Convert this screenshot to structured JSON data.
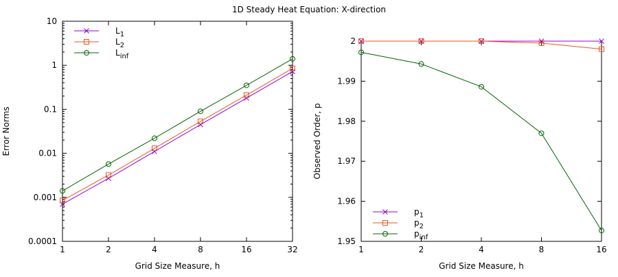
{
  "title": "1D Steady Heat Equation: X-direction",
  "chart_data": [
    {
      "type": "line",
      "xscale": "log2",
      "yscale": "log10",
      "x": [
        1,
        2,
        4,
        8,
        16,
        32
      ],
      "xticks": [
        "1",
        "2",
        "4",
        "8",
        "16",
        "32"
      ],
      "yticks": [
        "0.0001",
        "0.001",
        "0.01",
        "0.1",
        "1",
        "10"
      ],
      "xlim": [
        1,
        32
      ],
      "ylim": [
        0.0001,
        10
      ],
      "xlabel": "Grid Size Measure, h",
      "ylabel": "Error Norms",
      "legend_position": "top-left",
      "series": [
        {
          "name": "L",
          "subscript": "1",
          "color": "#9400d3",
          "marker": "x",
          "values": [
            0.0007,
            0.0027,
            0.011,
            0.045,
            0.18,
            0.72
          ]
        },
        {
          "name": "L",
          "subscript": "2",
          "color": "#e8561f",
          "marker": "square",
          "values": [
            0.00085,
            0.0032,
            0.013,
            0.053,
            0.21,
            0.85
          ]
        },
        {
          "name": "L",
          "subscript": "inf",
          "color": "#006400",
          "marker": "circle",
          "values": [
            0.0014,
            0.0057,
            0.022,
            0.09,
            0.35,
            1.4
          ]
        }
      ]
    },
    {
      "type": "line",
      "xscale": "log2",
      "yscale": "linear",
      "x": [
        1,
        2,
        4,
        8,
        16
      ],
      "xticks": [
        "1",
        "2",
        "4",
        "8",
        "16"
      ],
      "yticks": [
        "1.95",
        "1.96",
        "1.97",
        "1.98",
        "1.99",
        "2"
      ],
      "xlim": [
        1,
        16
      ],
      "ylim": [
        1.95,
        2.0
      ],
      "xlabel": "Grid Size Measure, h",
      "ylabel": "Observed Order, p",
      "legend_position": "bottom-left",
      "series": [
        {
          "name": "p",
          "subscript": "1",
          "color": "#9400d3",
          "marker": "x",
          "values": [
            2.0,
            2.0,
            2.0,
            2.0,
            2.0
          ]
        },
        {
          "name": "p",
          "subscript": "2",
          "color": "#e8561f",
          "marker": "square",
          "values": [
            2.0,
            2.0,
            2.0,
            1.9995,
            1.998
          ]
        },
        {
          "name": "p",
          "subscript": "inf",
          "color": "#006400",
          "marker": "circle",
          "values": [
            1.9972,
            1.9943,
            1.9886,
            1.977,
            1.9527
          ]
        }
      ]
    }
  ]
}
